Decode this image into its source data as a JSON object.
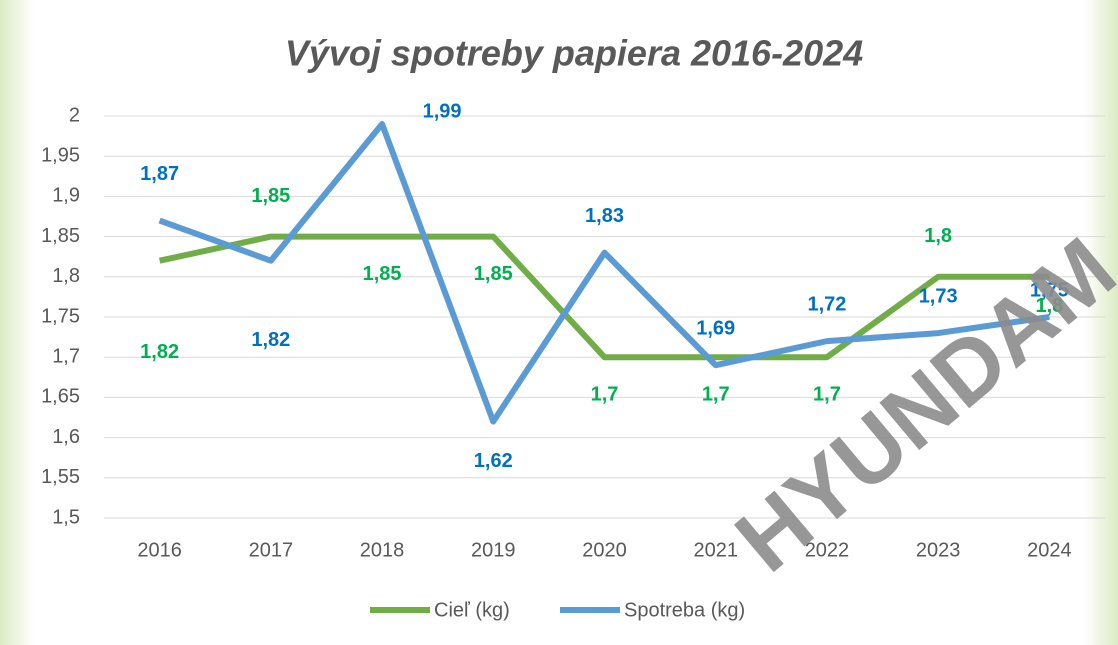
{
  "chart_data": {
    "type": "line",
    "title": "Vývoj spotreby papiera 2016-2024",
    "categories": [
      "2016",
      "2017",
      "2018",
      "2019",
      "2020",
      "2021",
      "2022",
      "2023",
      "2024"
    ],
    "series": [
      {
        "name": "Cieľ (kg)",
        "color": "#70ad47",
        "label_color": "#00b050",
        "values": [
          1.82,
          1.85,
          1.85,
          1.85,
          1.7,
          1.7,
          1.7,
          1.8,
          1.8
        ],
        "value_labels": [
          "1,82",
          "1,85",
          "1,85",
          "1,85",
          "1,7",
          "1,7",
          "1,7",
          "1,8",
          "1,8"
        ]
      },
      {
        "name": "Spotreba (kg)",
        "color": "#5b9bd5",
        "label_color": "#0070c0",
        "values": [
          1.87,
          1.82,
          1.99,
          1.62,
          1.83,
          1.69,
          1.72,
          1.73,
          1.75
        ],
        "value_labels": [
          "1,87",
          "1,82",
          "1,99",
          "1,62",
          "1,83",
          "1,69",
          "1,72",
          "1,73",
          "1,75"
        ]
      }
    ],
    "ylim": [
      1.5,
      2
    ],
    "yticks": [
      {
        "value": 1.5,
        "label": "1,5"
      },
      {
        "value": 1.55,
        "label": "1,55"
      },
      {
        "value": 1.6,
        "label": "1,6"
      },
      {
        "value": 1.65,
        "label": "1,65"
      },
      {
        "value": 1.7,
        "label": "1,7"
      },
      {
        "value": 1.75,
        "label": "1,75"
      },
      {
        "value": 1.8,
        "label": "1,8"
      },
      {
        "value": 1.85,
        "label": "1,85"
      },
      {
        "value": 1.9,
        "label": "1,9"
      },
      {
        "value": 1.95,
        "label": "1,95"
      },
      2
    ],
    "grid": true,
    "legend": "bottom",
    "watermark": "HYUNDAM"
  }
}
